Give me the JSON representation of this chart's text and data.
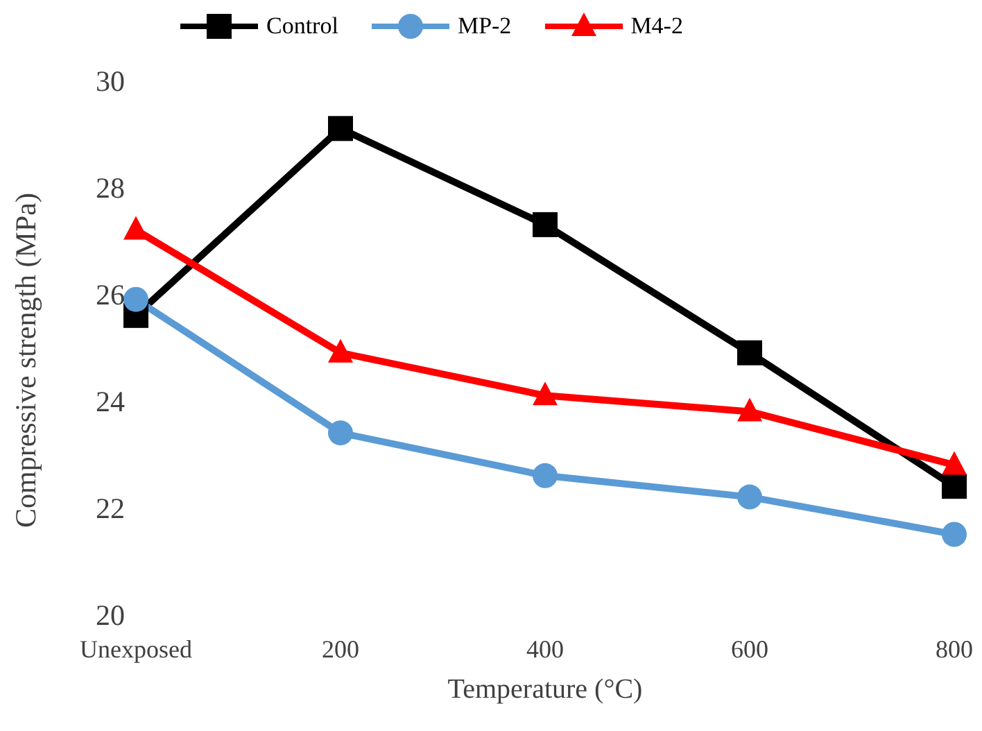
{
  "chart_data": {
    "type": "line",
    "xlabel": "Temperature (°C)",
    "ylabel": "Compressive strength (MPa)",
    "categories": [
      "Unexposed",
      "200",
      "400",
      "600",
      "800"
    ],
    "ylim": [
      20,
      30
    ],
    "yticks": [
      20,
      22,
      24,
      26,
      28,
      30
    ],
    "grid": false,
    "legend": "top",
    "series": [
      {
        "name": "Control",
        "color": "#000000",
        "marker": "square",
        "values": [
          25.6,
          29.1,
          27.3,
          24.9,
          22.4
        ]
      },
      {
        "name": "MP-2",
        "color": "#5b9bd5",
        "marker": "circle",
        "values": [
          25.9,
          23.4,
          22.6,
          22.2,
          21.5
        ]
      },
      {
        "name": "M4-2",
        "color": "#ff0000",
        "marker": "triangle",
        "values": [
          27.2,
          24.9,
          24.1,
          23.8,
          22.8
        ]
      }
    ]
  }
}
